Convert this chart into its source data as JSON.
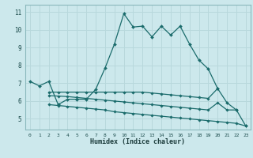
{
  "xlabel": "Humidex (Indice chaleur)",
  "bg_color": "#cce8ec",
  "grid_color": "#b8d8dc",
  "line_color": "#1a6b6b",
  "xlim": [
    -0.5,
    23.5
  ],
  "ylim": [
    4.4,
    11.4
  ],
  "yticks": [
    5,
    6,
    7,
    8,
    9,
    10,
    11
  ],
  "xticks": [
    0,
    1,
    2,
    3,
    4,
    5,
    6,
    7,
    8,
    9,
    10,
    11,
    12,
    13,
    14,
    15,
    16,
    17,
    18,
    19,
    20,
    21,
    22,
    23
  ],
  "main_x": [
    0,
    1,
    2,
    3,
    4,
    5,
    6,
    7,
    8,
    9,
    10,
    11,
    12,
    13,
    14,
    15,
    16,
    17,
    18,
    19,
    20,
    21,
    22,
    23
  ],
  "main_y": [
    7.1,
    6.85,
    7.1,
    5.8,
    6.1,
    6.1,
    6.1,
    6.65,
    7.85,
    9.2,
    10.9,
    10.15,
    10.2,
    9.6,
    10.2,
    9.7,
    10.2,
    9.2,
    8.3,
    7.8,
    6.7,
    5.9,
    5.5,
    4.6
  ],
  "line1_x": [
    2,
    3,
    4,
    5,
    6,
    7,
    8,
    9,
    10,
    11,
    12,
    13,
    14,
    15,
    16,
    17,
    18,
    19,
    20
  ],
  "line1_y": [
    6.5,
    6.5,
    6.5,
    6.5,
    6.5,
    6.5,
    6.5,
    6.5,
    6.5,
    6.5,
    6.5,
    6.45,
    6.4,
    6.35,
    6.3,
    6.25,
    6.2,
    6.15,
    6.7
  ],
  "line2_x": [
    2,
    3,
    4,
    5,
    6,
    7,
    8,
    9,
    10,
    11,
    12,
    13,
    14,
    15,
    16,
    17,
    18,
    19,
    20,
    21,
    22
  ],
  "line2_y": [
    6.3,
    6.28,
    6.25,
    6.2,
    6.15,
    6.1,
    6.05,
    6.0,
    5.95,
    5.9,
    5.85,
    5.8,
    5.75,
    5.7,
    5.65,
    5.6,
    5.55,
    5.5,
    5.9,
    5.5,
    5.5
  ],
  "line3_x": [
    2,
    3,
    4,
    5,
    6,
    7,
    8,
    9,
    10,
    11,
    12,
    13,
    14,
    15,
    16,
    17,
    18,
    19,
    20,
    21,
    22,
    23
  ],
  "line3_y": [
    5.8,
    5.75,
    5.7,
    5.65,
    5.6,
    5.55,
    5.5,
    5.4,
    5.35,
    5.3,
    5.25,
    5.2,
    5.15,
    5.1,
    5.05,
    5.0,
    4.95,
    4.9,
    4.85,
    4.8,
    4.75,
    4.6
  ]
}
